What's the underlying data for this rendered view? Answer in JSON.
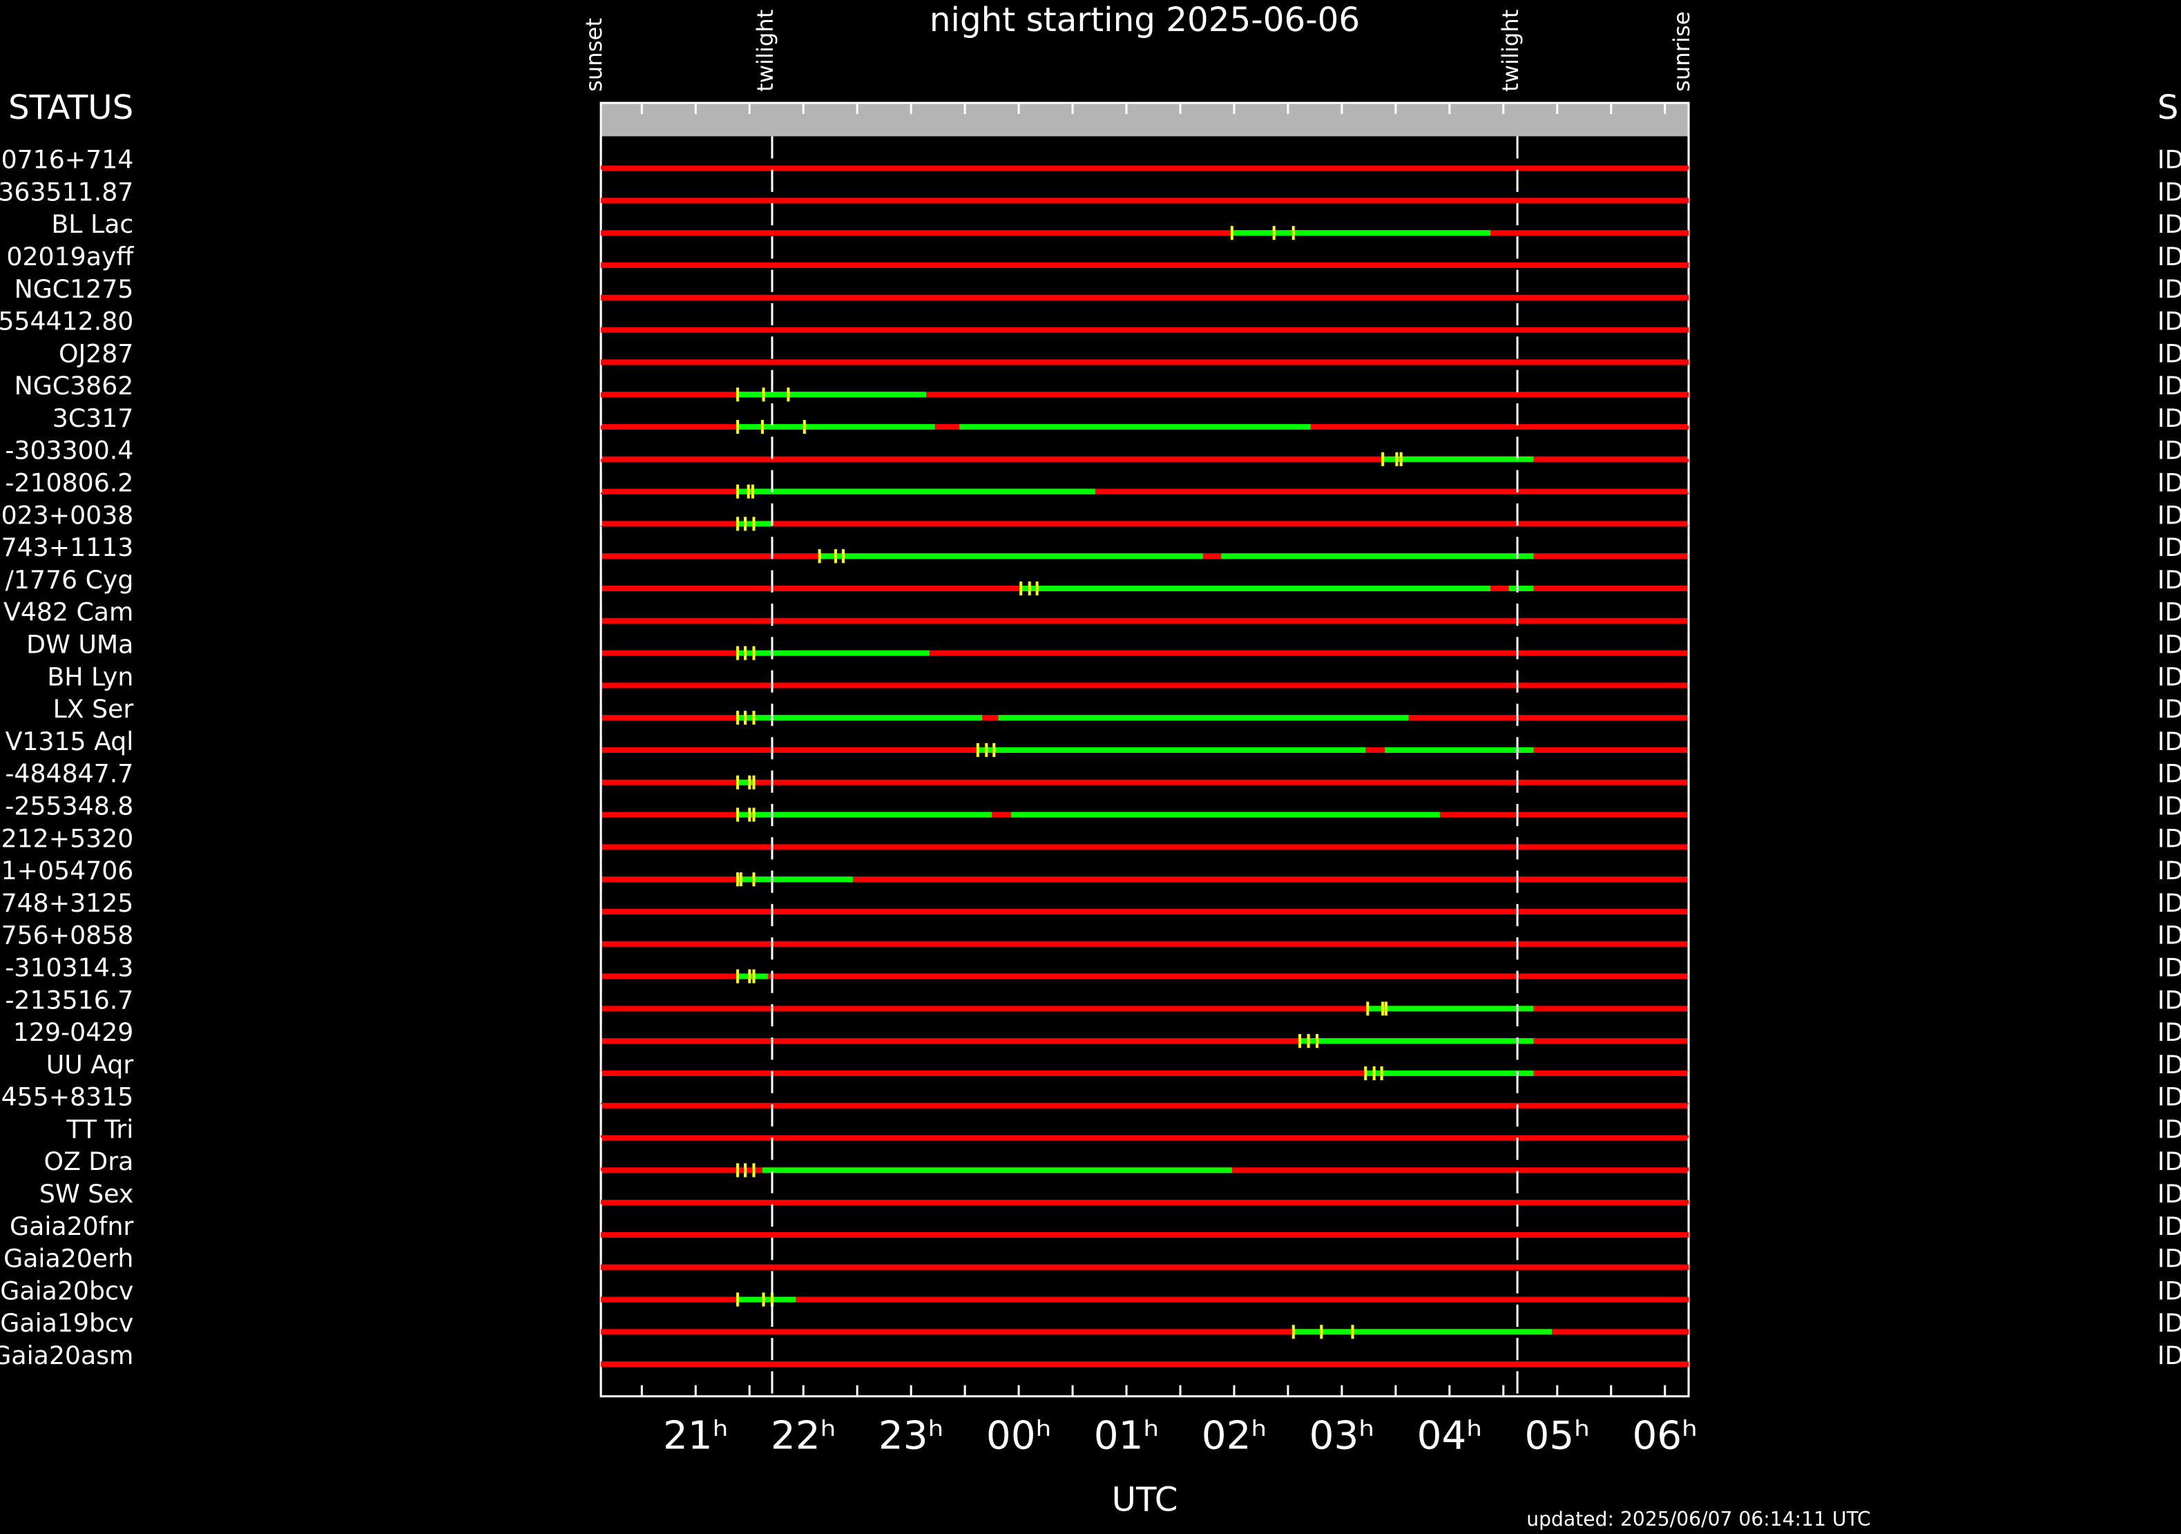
{
  "chart_data": {
    "type": "timeline",
    "title": "night starting 2025-06-06",
    "left_header": "STATUS",
    "right_header": "S",
    "x_label": "UTC",
    "footer": "updated: 2025/06/07 06:14:11 UTC",
    "xlim": [
      20.12,
      30.22
    ],
    "xticks": [
      {
        "value": 21,
        "label": "21ʰ"
      },
      {
        "value": 22,
        "label": "22ʰ"
      },
      {
        "value": 23,
        "label": "23ʰ"
      },
      {
        "value": 24,
        "label": "00ʰ"
      },
      {
        "value": 25,
        "label": "01ʰ"
      },
      {
        "value": 26,
        "label": "02ʰ"
      },
      {
        "value": 27,
        "label": "03ʰ"
      },
      {
        "value": 28,
        "label": "04ʰ"
      },
      {
        "value": 29,
        "label": "05ʰ"
      },
      {
        "value": 30,
        "label": "06ʰ"
      }
    ],
    "xminorticks": [
      20.5,
      21.5,
      22.5,
      23.5,
      24.5,
      25.5,
      26.5,
      27.5,
      28.5,
      29.5
    ],
    "events": [
      {
        "label": "sunset",
        "value": 20.12
      },
      {
        "label": "twilight",
        "value": 21.71
      },
      {
        "label": "twilight",
        "value": 28.63
      },
      {
        "label": "sunrise",
        "value": 30.22
      }
    ],
    "colors": {
      "unavailable": "#ff0000",
      "available": "#00ff00",
      "marker": "#ffff00"
    },
    "rows": [
      {
        "name": "0716+714",
        "status": "ID",
        "windows": [],
        "markers": []
      },
      {
        "name": "363511.87",
        "status": "ID",
        "windows": [],
        "markers": []
      },
      {
        "name": "BL Lac",
        "status": "ID",
        "windows": [
          [
            25.98,
            28.38
          ]
        ],
        "markers": [
          25.98,
          26.37,
          26.55
        ]
      },
      {
        "name": "02019ayff",
        "status": "ID",
        "windows": [],
        "markers": []
      },
      {
        "name": "NGC1275",
        "status": "ID",
        "windows": [],
        "markers": []
      },
      {
        "name": "554412.80",
        "status": "ID",
        "windows": [],
        "markers": []
      },
      {
        "name": "OJ287",
        "status": "ID",
        "windows": [],
        "markers": []
      },
      {
        "name": "NGC3862",
        "status": "ID",
        "windows": [
          [
            21.39,
            23.14
          ]
        ],
        "markers": [
          21.39,
          21.63,
          21.86
        ]
      },
      {
        "name": "3C317",
        "status": "ID",
        "windows": [
          [
            21.39,
            23.22
          ],
          [
            23.45,
            26.71
          ]
        ],
        "markers": [
          21.39,
          21.62,
          22.01
        ]
      },
      {
        "name": "-303300.4",
        "status": "ID",
        "windows": [
          [
            27.38,
            28.78
          ]
        ],
        "markers": [
          27.38,
          27.51,
          27.55
        ]
      },
      {
        "name": "-210806.2",
        "status": "ID",
        "windows": [
          [
            21.39,
            24.71
          ]
        ],
        "markers": [
          21.39,
          21.49,
          21.53
        ]
      },
      {
        "name": "023+0038",
        "status": "ID",
        "windows": [
          [
            21.39,
            21.71
          ]
        ],
        "markers": [
          21.39,
          21.46,
          21.54
        ]
      },
      {
        "name": "743+1113",
        "status": "ID",
        "windows": [
          [
            22.15,
            25.71
          ],
          [
            25.88,
            28.78
          ]
        ],
        "markers": [
          22.15,
          22.3,
          22.37
        ]
      },
      {
        "name": "/1776 Cyg",
        "status": "ID",
        "windows": [
          [
            24.02,
            28.38
          ],
          [
            28.55,
            28.78
          ]
        ],
        "markers": [
          24.02,
          24.1,
          24.17
        ]
      },
      {
        "name": "V482 Cam",
        "status": "ID",
        "windows": [],
        "markers": []
      },
      {
        "name": "DW UMa",
        "status": "ID",
        "windows": [
          [
            21.39,
            23.17
          ]
        ],
        "markers": [
          21.39,
          21.46,
          21.54
        ]
      },
      {
        "name": "BH Lyn",
        "status": "ID",
        "windows": [],
        "markers": []
      },
      {
        "name": "LX Ser",
        "status": "ID",
        "windows": [
          [
            21.39,
            23.66
          ],
          [
            23.81,
            27.62
          ]
        ],
        "markers": [
          21.39,
          21.46,
          21.54
        ]
      },
      {
        "name": "V1315 Aql",
        "status": "ID",
        "windows": [
          [
            23.62,
            27.22
          ],
          [
            27.4,
            28.78
          ]
        ],
        "markers": [
          23.62,
          23.7,
          23.77
        ]
      },
      {
        "name": "-484847.7",
        "status": "ID",
        "windows": [
          [
            21.39,
            21.55
          ]
        ],
        "markers": [
          21.39,
          21.5,
          21.54
        ]
      },
      {
        "name": "-255348.8",
        "status": "ID",
        "windows": [
          [
            21.39,
            23.75
          ],
          [
            23.93,
            27.91
          ]
        ],
        "markers": [
          21.39,
          21.5,
          21.54
        ]
      },
      {
        "name": "212+5320",
        "status": "ID",
        "windows": [],
        "markers": []
      },
      {
        "name": "1+054706",
        "status": "ID",
        "windows": [
          [
            21.39,
            22.46
          ]
        ],
        "markers": [
          21.39,
          21.42,
          21.54
        ]
      },
      {
        "name": "748+3125",
        "status": "ID",
        "windows": [],
        "markers": []
      },
      {
        "name": "756+0858",
        "status": "ID",
        "windows": [],
        "markers": []
      },
      {
        "name": "-310314.3",
        "status": "ID",
        "windows": [
          [
            21.39,
            21.67
          ]
        ],
        "markers": [
          21.39,
          21.5,
          21.54
        ]
      },
      {
        "name": "-213516.7",
        "status": "ID",
        "windows": [
          [
            27.24,
            28.78
          ]
        ],
        "markers": [
          27.24,
          27.38,
          27.41
        ]
      },
      {
        "name": "129-0429",
        "status": "ID",
        "windows": [
          [
            26.61,
            28.78
          ]
        ],
        "markers": [
          26.61,
          26.69,
          26.77
        ]
      },
      {
        "name": "UU Aqr",
        "status": "ID",
        "windows": [
          [
            27.22,
            28.78
          ]
        ],
        "markers": [
          27.22,
          27.3,
          27.37
        ]
      },
      {
        "name": "455+8315",
        "status": "ID",
        "windows": [],
        "markers": []
      },
      {
        "name": "TT Tri",
        "status": "ID",
        "windows": [],
        "markers": []
      },
      {
        "name": "OZ Dra",
        "status": "ID",
        "windows": [
          [
            21.62,
            25.98
          ]
        ],
        "markers": [
          21.39,
          21.46,
          21.54
        ]
      },
      {
        "name": "SW Sex",
        "status": "ID",
        "windows": [],
        "markers": []
      },
      {
        "name": "Gaia20fnr",
        "status": "ID",
        "windows": [],
        "markers": []
      },
      {
        "name": "Gaia20erh",
        "status": "ID",
        "windows": [],
        "markers": []
      },
      {
        "name": "Gaia20bcv",
        "status": "ID",
        "windows": [
          [
            21.39,
            21.93
          ]
        ],
        "markers": [
          21.39,
          21.63,
          21.71
        ]
      },
      {
        "name": "Gaia19bcv",
        "status": "ID",
        "windows": [
          [
            26.55,
            28.95
          ]
        ],
        "markers": [
          26.55,
          26.81,
          27.1
        ]
      },
      {
        "name": "Gaia20asm",
        "status": "ID",
        "windows": [],
        "markers": []
      }
    ]
  }
}
